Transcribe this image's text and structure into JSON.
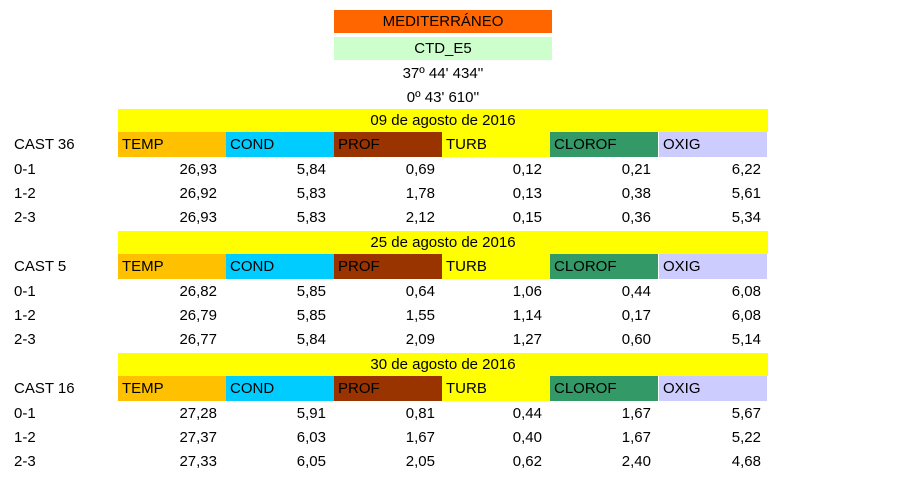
{
  "header": {
    "sea": "MEDITERRÁNEO",
    "station": "CTD_E5",
    "lat": "37º 44' 434''",
    "lon": "0º 43' 610''"
  },
  "colors": {
    "sea_bg": "#ff6600",
    "station_bg": "#ccffcc",
    "date_bg": "#ffff00",
    "temp": "#ffc000",
    "cond": "#00ccff",
    "prof": "#993300",
    "turb": "#ffff00",
    "clorof": "#339966",
    "oxig": "#ccccff"
  },
  "columns": [
    "TEMP",
    "COND",
    "PROF",
    "TURB",
    "CLOROF",
    "OXIG"
  ],
  "sections": [
    {
      "date": "09 de agosto de 2016",
      "cast": "CAST 36",
      "rows": [
        {
          "label": "0-1",
          "values": [
            "26,93",
            "5,84",
            "0,69",
            "0,12",
            "0,21",
            "6,22"
          ]
        },
        {
          "label": "1-2",
          "values": [
            "26,92",
            "5,83",
            "1,78",
            "0,13",
            "0,38",
            "5,61"
          ]
        },
        {
          "label": "2-3",
          "values": [
            "26,93",
            "5,83",
            "2,12",
            "0,15",
            "0,36",
            "5,34"
          ]
        }
      ]
    },
    {
      "date": "25 de agosto de 2016",
      "cast": "CAST 5",
      "rows": [
        {
          "label": "0-1",
          "values": [
            "26,82",
            "5,85",
            "0,64",
            "1,06",
            "0,44",
            "6,08"
          ]
        },
        {
          "label": "1-2",
          "values": [
            "26,79",
            "5,85",
            "1,55",
            "1,14",
            "0,17",
            "6,08"
          ]
        },
        {
          "label": "2-3",
          "values": [
            "26,77",
            "5,84",
            "2,09",
            "1,27",
            "0,60",
            "5,14"
          ]
        }
      ]
    },
    {
      "date": "30  de agosto de 2016",
      "cast": "CAST 16",
      "rows": [
        {
          "label": "0-1",
          "values": [
            "27,28",
            "5,91",
            "0,81",
            "0,44",
            "1,67",
            "5,67"
          ]
        },
        {
          "label": "1-2",
          "values": [
            "27,37",
            "6,03",
            "1,67",
            "0,40",
            "1,67",
            "5,22"
          ]
        },
        {
          "label": "2-3",
          "values": [
            "27,33",
            "6,05",
            "2,05",
            "0,62",
            "2,40",
            "4,68"
          ]
        }
      ]
    }
  ]
}
